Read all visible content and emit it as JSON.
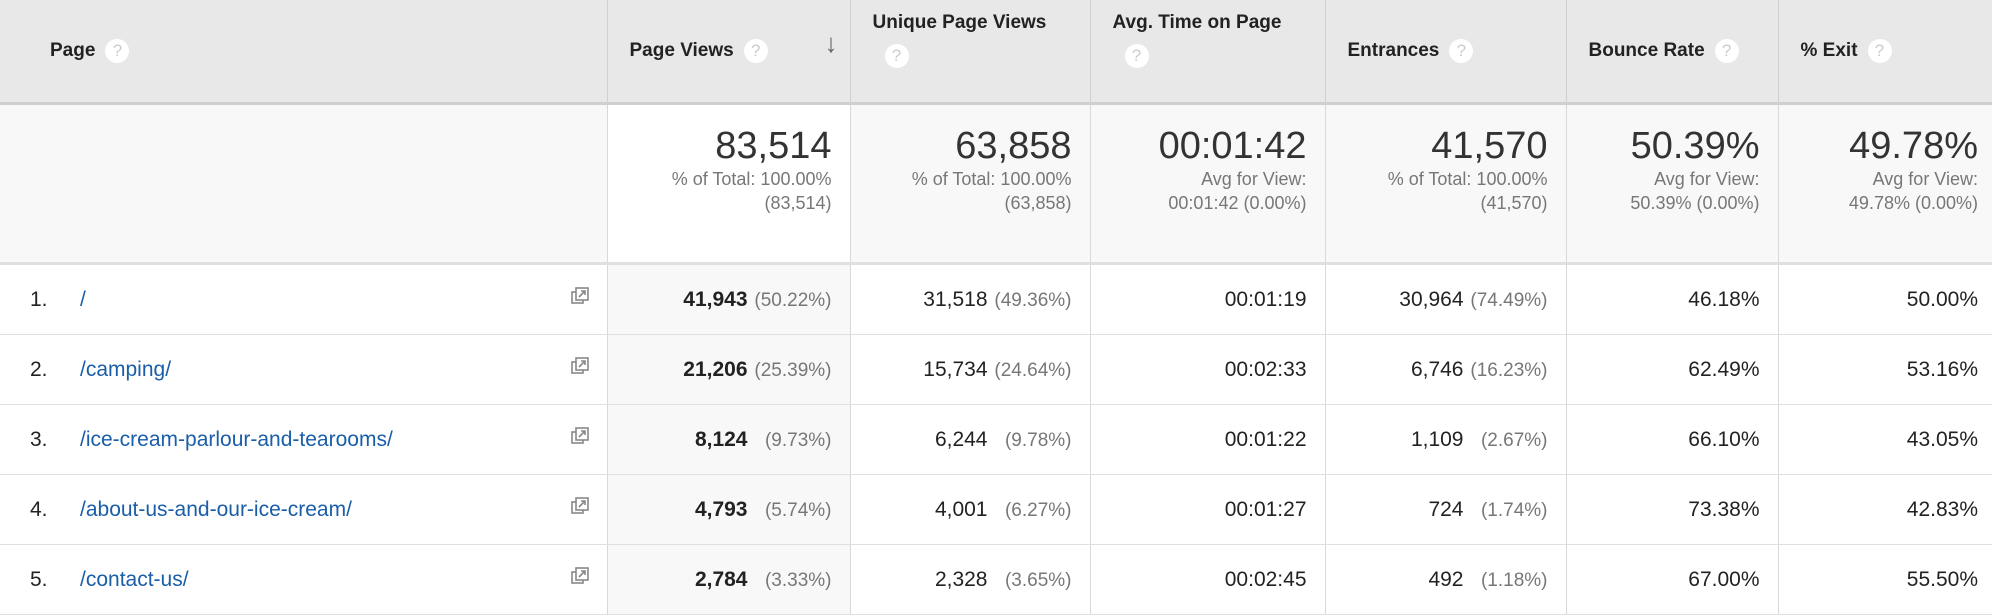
{
  "headers": [
    {
      "label": "Page",
      "help": "?"
    },
    {
      "label": "Page Views",
      "help": "?",
      "sort": "↓"
    },
    {
      "label": "Unique Page Views",
      "help": "?"
    },
    {
      "label": "Avg. Time on Page",
      "help": "?"
    },
    {
      "label": "Entrances",
      "help": "?"
    },
    {
      "label": "Bounce Rate",
      "help": "?"
    },
    {
      "label": "% Exit",
      "help": "?"
    }
  ],
  "summary": [
    {
      "value": "83,514",
      "line1": "% of Total: 100.00%",
      "line2": "(83,514)"
    },
    {
      "value": "63,858",
      "line1": "% of Total: 100.00%",
      "line2": "(63,858)"
    },
    {
      "value": "00:01:42",
      "line1": "Avg for View:",
      "line2": "00:01:42 (0.00%)"
    },
    {
      "value": "41,570",
      "line1": "% of Total: 100.00%",
      "line2": "(41,570)"
    },
    {
      "value": "50.39%",
      "line1": "Avg for View:",
      "line2": "50.39% (0.00%)"
    },
    {
      "value": "49.78%",
      "line1": "Avg for View:",
      "line2": "49.78% (0.00%)"
    }
  ],
  "rows": [
    {
      "index": "1.",
      "page": "/",
      "pv": "41,943",
      "pv_pct": "(50.22%)",
      "upv": "31,518",
      "upv_pct": "(49.36%)",
      "time": "00:01:19",
      "ent": "30,964",
      "ent_pct": "(74.49%)",
      "bounce": "46.18%",
      "exit": "50.00%"
    },
    {
      "index": "2.",
      "page": "/camping/",
      "pv": "21,206",
      "pv_pct": "(25.39%)",
      "upv": "15,734",
      "upv_pct": "(24.64%)",
      "time": "00:02:33",
      "ent": "6,746",
      "ent_pct": "(16.23%)",
      "bounce": "62.49%",
      "exit": "53.16%"
    },
    {
      "index": "3.",
      "page": "/ice-cream-parlour-and-tearooms/",
      "pv": "8,124",
      "pv_pct": "(9.73%)",
      "upv": "6,244",
      "upv_pct": "(9.78%)",
      "time": "00:01:22",
      "ent": "1,109",
      "ent_pct": "(2.67%)",
      "bounce": "66.10%",
      "exit": "43.05%"
    },
    {
      "index": "4.",
      "page": "/about-us-and-our-ice-cream/",
      "pv": "4,793",
      "pv_pct": "(5.74%)",
      "upv": "4,001",
      "upv_pct": "(6.27%)",
      "time": "00:01:27",
      "ent": "724",
      "ent_pct": "(1.74%)",
      "bounce": "73.38%",
      "exit": "42.83%"
    },
    {
      "index": "5.",
      "page": "/contact-us/",
      "pv": "2,784",
      "pv_pct": "(3.33%)",
      "upv": "2,328",
      "upv_pct": "(3.65%)",
      "time": "00:02:45",
      "ent": "492",
      "ent_pct": "(1.18%)",
      "bounce": "67.00%",
      "exit": "55.50%"
    }
  ],
  "colors": {
    "header_bg": "#e8e8e8",
    "link": "#1a5ea8",
    "muted": "#777777"
  }
}
